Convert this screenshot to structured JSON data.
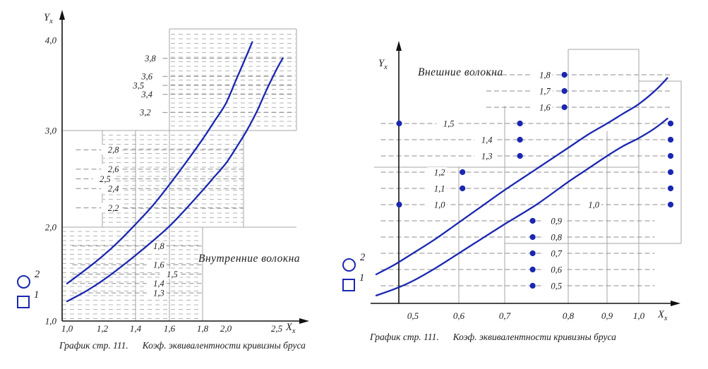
{
  "colors": {
    "curve": "#1a27b0",
    "solid_grid": "#a6a6a6",
    "dashed_line": "#8d8d8d",
    "hatch": "#b4b4b4",
    "axis": "#111111",
    "text": "#1b1b1b"
  },
  "chart_data": [
    {
      "type": "line",
      "title": "Внутренние волокна",
      "caption_ref": "График стр. 111.",
      "caption_text": "Коэф. эквивалентности кривизны бруса",
      "y_label_main": "Y",
      "y_label_sub": "x",
      "x_label_main": "X",
      "x_label_sub": "x",
      "xlim": [
        1.0,
        2.7
      ],
      "ylim": [
        1.0,
        4.0
      ],
      "grid": "stepped solid boxes filled with horizontal dashed hatching",
      "legend_position": "left-bottom",
      "x_ticks": [
        {
          "label": "1,0",
          "v": 1.0
        },
        {
          "label": "1,2",
          "v": 1.2
        },
        {
          "label": "1,4",
          "v": 1.4
        },
        {
          "label": "1,6",
          "v": 1.6
        },
        {
          "label": "1,8",
          "v": 1.8
        },
        {
          "label": "2,0",
          "v": 2.0
        },
        {
          "label": "2,5",
          "v": 2.5
        }
      ],
      "y_ticks": [
        {
          "label": "1,0",
          "v": 1.0
        },
        {
          "label": "2,0",
          "v": 2.0
        },
        {
          "label": "3,0",
          "v": 3.0
        },
        {
          "label": "4,0",
          "v": 4.0
        }
      ],
      "legend": [
        {
          "symbol": "circle",
          "label": "2"
        },
        {
          "symbol": "square",
          "label": "1"
        }
      ],
      "levels": [
        {
          "label": "3,8",
          "v": 3.8,
          "lx": 1.52,
          "line": [
            1.56,
            2.68
          ]
        },
        {
          "label": "3,6",
          "v": 3.6,
          "lx": 1.5,
          "line": [
            1.56,
            2.68
          ]
        },
        {
          "label": "3,5",
          "v": 3.5,
          "lx": 1.45,
          "line": [
            1.56,
            2.68
          ]
        },
        {
          "label": "3,4",
          "v": 3.4,
          "lx": 1.5,
          "line": [
            1.56,
            2.68
          ]
        },
        {
          "label": "3,2",
          "v": 3.2,
          "lx": 1.49,
          "line": [
            1.56,
            2.68
          ]
        },
        {
          "label": "2,8",
          "v": 2.8,
          "lx": 1.3,
          "line": [
            1.05,
            2.17
          ]
        },
        {
          "label": "2,6",
          "v": 2.6,
          "lx": 1.3,
          "line": [
            1.05,
            2.17
          ]
        },
        {
          "label": "2,5",
          "v": 2.5,
          "lx": 1.25,
          "line": [
            1.05,
            2.17
          ]
        },
        {
          "label": "2,4",
          "v": 2.4,
          "lx": 1.3,
          "line": [
            1.05,
            2.17
          ]
        },
        {
          "label": "2,2",
          "v": 2.2,
          "lx": 1.3,
          "line": [
            1.05,
            2.17
          ]
        },
        {
          "label": "1,8",
          "v": 1.8,
          "lx": 1.57,
          "line": [
            1.03,
            1.8
          ]
        },
        {
          "label": "1,6",
          "v": 1.6,
          "lx": 1.57,
          "line": [
            1.03,
            1.8
          ]
        },
        {
          "label": "1,5",
          "v": 1.5,
          "lx": 1.65,
          "line": [
            1.03,
            1.8
          ]
        },
        {
          "label": "1,4",
          "v": 1.4,
          "lx": 1.57,
          "line": [
            1.03,
            1.8
          ]
        },
        {
          "label": "1,3",
          "v": 1.3,
          "lx": 1.57,
          "line": [
            1.03,
            1.8
          ]
        }
      ],
      "series": [
        {
          "name": "2",
          "symbol": "circle",
          "points": [
            [
              1.0,
              1.4
            ],
            [
              1.1,
              1.54
            ],
            [
              1.2,
              1.69
            ],
            [
              1.3,
              1.85
            ],
            [
              1.4,
              2.03
            ],
            [
              1.5,
              2.22
            ],
            [
              1.6,
              2.44
            ],
            [
              1.7,
              2.67
            ],
            [
              1.8,
              2.91
            ],
            [
              1.9,
              3.1
            ],
            [
              2.0,
              3.3
            ],
            [
              2.1,
              3.56
            ],
            [
              2.2,
              3.82
            ],
            [
              2.26,
              3.98
            ]
          ]
        },
        {
          "name": "1",
          "symbol": "square",
          "points": [
            [
              1.0,
              1.21
            ],
            [
              1.1,
              1.31
            ],
            [
              1.2,
              1.43
            ],
            [
              1.3,
              1.56
            ],
            [
              1.4,
              1.7
            ],
            [
              1.5,
              1.85
            ],
            [
              1.6,
              2.01
            ],
            [
              1.7,
              2.19
            ],
            [
              1.8,
              2.38
            ],
            [
              1.9,
              2.52
            ],
            [
              2.0,
              2.66
            ],
            [
              2.1,
              2.82
            ],
            [
              2.2,
              2.99
            ],
            [
              2.3,
              3.2
            ],
            [
              2.4,
              3.45
            ],
            [
              2.5,
              3.68
            ],
            [
              2.56,
              3.8
            ]
          ]
        }
      ]
    },
    {
      "type": "line",
      "title": "Внешние волокна",
      "caption_ref": "График стр. 111.",
      "caption_text": "Коэф. эквивалентности кривизны бруса",
      "y_label_main": "Y",
      "y_label_sub": "x",
      "x_label_main": "X",
      "x_label_sub": "x",
      "xlim": [
        0.42,
        1.1
      ],
      "ylim": [
        0.4,
        1.85
      ],
      "grid": "stepped solid boxes with labeled horizontal dashed levels and point markers",
      "legend_position": "left-bottom",
      "x_ticks": [
        {
          "label": "0,5",
          "v": 0.5
        },
        {
          "label": "0,6",
          "v": 0.6
        },
        {
          "label": "0,7",
          "v": 0.7
        },
        {
          "label": "0,8",
          "v": 0.8
        },
        {
          "label": "0,9",
          "v": 0.9
        },
        {
          "label": "1,0",
          "v": 1.0
        }
      ],
      "y_ticks": [],
      "legend": [
        {
          "symbol": "circle",
          "label": "2"
        },
        {
          "symbol": "square",
          "label": "1"
        }
      ],
      "levels": [
        {
          "label": "1,8",
          "v": 1.8,
          "lx": 0.772,
          "line": [
            0.66,
            1.1
          ],
          "dots": [
            0.794
          ]
        },
        {
          "label": "1,7",
          "v": 1.7,
          "lx": 0.772,
          "line": [
            0.66,
            1.1
          ],
          "dots": [
            0.794
          ]
        },
        {
          "label": "1,6",
          "v": 1.6,
          "lx": 0.772,
          "line": [
            0.66,
            1.1
          ],
          "dots": [
            0.794
          ]
        },
        {
          "label": "1,5",
          "v": 1.5,
          "lx": 0.59,
          "line": [
            0.43,
            1.1
          ],
          "dots": [
            0.47,
            0.724,
            1.1
          ]
        },
        {
          "label": "1,4",
          "v": 1.4,
          "lx": 0.673,
          "line": [
            0.43,
            1.1
          ],
          "dots": [
            0.724,
            1.1
          ]
        },
        {
          "label": "1,3",
          "v": 1.3,
          "lx": 0.673,
          "line": [
            0.43,
            1.1
          ],
          "dots": [
            0.724,
            1.1
          ]
        },
        {
          "label": "1,2",
          "v": 1.2,
          "lx": 0.57,
          "line": [
            0.43,
            1.1
          ],
          "dots": [
            0.608,
            1.1
          ]
        },
        {
          "label": "1,1",
          "v": 1.1,
          "lx": 0.57,
          "line": [
            0.43,
            1.1
          ],
          "dots": [
            0.608,
            1.1
          ]
        },
        {
          "label": "1,0",
          "v": 1.0,
          "lx": 0.57,
          "line": [
            0.43,
            1.1
          ],
          "dots": [
            0.47,
            1.1
          ]
        },
        {
          "label": "1,0",
          "v": 1.0,
          "lx": 0.88,
          "line": null,
          "dots": []
        },
        {
          "label": "0,9",
          "v": 0.9,
          "lx": 0.79,
          "line": [
            0.43,
            1.05
          ],
          "dots": [
            0.744
          ]
        },
        {
          "label": "0,8",
          "v": 0.8,
          "lx": 0.79,
          "line": [
            0.43,
            1.05
          ],
          "dots": [
            0.744
          ]
        },
        {
          "label": "0,7",
          "v": 0.7,
          "lx": 0.79,
          "line": [
            0.43,
            1.05
          ],
          "dots": [
            0.744
          ]
        },
        {
          "label": "0,6",
          "v": 0.6,
          "lx": 0.79,
          "line": [
            0.43,
            1.05
          ],
          "dots": [
            0.744
          ]
        },
        {
          "label": "0,5",
          "v": 0.5,
          "lx": 0.79,
          "line": [
            0.43,
            1.05
          ],
          "dots": [
            0.744
          ]
        }
      ],
      "series": [
        {
          "name": "2",
          "symbol": "circle",
          "points": [
            [
              0.42,
              0.57
            ],
            [
              0.46,
              0.63
            ],
            [
              0.5,
              0.7
            ],
            [
              0.55,
              0.79
            ],
            [
              0.6,
              0.89
            ],
            [
              0.65,
              0.99
            ],
            [
              0.7,
              1.09
            ],
            [
              0.75,
              1.22
            ],
            [
              0.8,
              1.35
            ],
            [
              0.85,
              1.43
            ],
            [
              0.9,
              1.5
            ],
            [
              0.95,
              1.56
            ],
            [
              1.0,
              1.62
            ],
            [
              1.05,
              1.7
            ],
            [
              1.09,
              1.78
            ]
          ]
        },
        {
          "name": "1",
          "symbol": "square",
          "points": [
            [
              0.42,
              0.44
            ],
            [
              0.46,
              0.48
            ],
            [
              0.5,
              0.53
            ],
            [
              0.55,
              0.61
            ],
            [
              0.6,
              0.7
            ],
            [
              0.65,
              0.79
            ],
            [
              0.7,
              0.88
            ],
            [
              0.75,
              1.0
            ],
            [
              0.8,
              1.14
            ],
            [
              0.85,
              1.22
            ],
            [
              0.9,
              1.3
            ],
            [
              0.95,
              1.36
            ],
            [
              1.0,
              1.41
            ],
            [
              1.05,
              1.47
            ],
            [
              1.09,
              1.53
            ]
          ]
        }
      ]
    }
  ]
}
